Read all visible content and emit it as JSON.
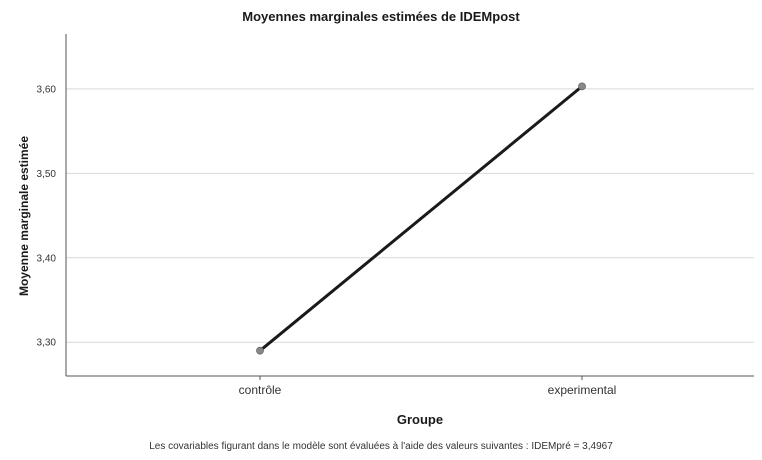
{
  "chart_data": {
    "type": "line",
    "title": "Moyennes marginales estimées de IDEMpost",
    "xlabel": "Groupe",
    "ylabel": "Moyenne marginale estimée",
    "categories": [
      "contrôle",
      "experimental"
    ],
    "series": [
      {
        "values": [
          3.29,
          3.603
        ]
      }
    ],
    "ylim": [
      3.26,
      3.665
    ],
    "yticks": [
      3.3,
      3.4,
      3.5,
      3.6
    ],
    "ytick_labels": [
      "3,30",
      "3,40",
      "3,50",
      "3,60"
    ],
    "grid": "horizontal",
    "line_color": "#1a1a1a",
    "marker_color": "#888888",
    "footnote": "Les covariables figurant dans le modèle sont évaluées à l'aide des valeurs suivantes : IDEMpré = 3,4967"
  }
}
